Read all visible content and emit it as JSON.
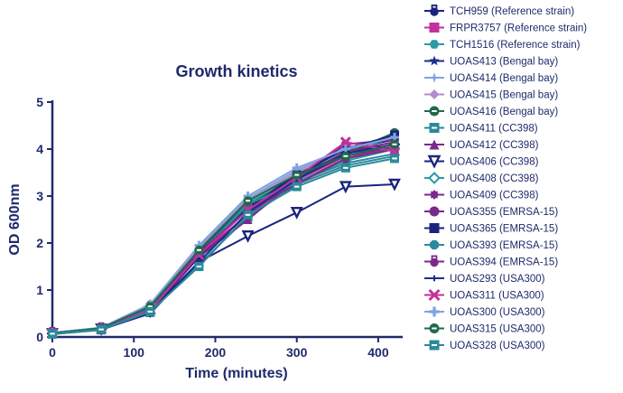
{
  "chart_data": {
    "type": "line",
    "title": "Growth kinetics",
    "xlabel": "Time (minutes)",
    "ylabel": "OD 600nm",
    "xlim": [
      0,
      430
    ],
    "ylim": [
      0,
      5
    ],
    "x_ticks": [
      "0",
      "100",
      "200",
      "300",
      "400"
    ],
    "y_ticks": [
      "0",
      "1",
      "2",
      "3",
      "4",
      "5"
    ],
    "x_tick_values": [
      0,
      100,
      200,
      300,
      400
    ],
    "y_tick_values": [
      0,
      1,
      2,
      3,
      4,
      5
    ],
    "grid": false,
    "legend_position": "right",
    "x": [
      0,
      60,
      120,
      180,
      240,
      300,
      360,
      420
    ],
    "series": [
      {
        "name": "TCH959 (Reference strain)",
        "color": "#1a237e",
        "marker": "lock",
        "values": [
          0.08,
          0.17,
          0.6,
          1.8,
          2.8,
          3.45,
          4.0,
          4.2
        ]
      },
      {
        "name": "FRPR3757 (Reference strain)",
        "color": "#c2329a",
        "marker": "square",
        "values": [
          0.09,
          0.16,
          0.55,
          1.75,
          2.6,
          3.3,
          3.8,
          4.05
        ]
      },
      {
        "name": "TCH1516 (Reference strain)",
        "color": "#2d9aa5",
        "marker": "hexagon",
        "values": [
          0.07,
          0.18,
          0.62,
          1.85,
          2.85,
          3.4,
          3.95,
          4.25
        ]
      },
      {
        "name": "UOAS413 (Bengal bay)",
        "color": "#1b2d8f",
        "marker": "star",
        "values": [
          0.08,
          0.18,
          0.58,
          1.82,
          2.9,
          3.45,
          3.9,
          4.15
        ]
      },
      {
        "name": "UOAS414 (Bengal bay)",
        "color": "#7ea4e0",
        "marker": "star4",
        "values": [
          0.09,
          0.19,
          0.64,
          1.9,
          2.95,
          3.55,
          4.0,
          4.3
        ]
      },
      {
        "name": "UOAS415 (Bengal bay)",
        "color": "#b38ccf",
        "marker": "diamond",
        "values": [
          0.08,
          0.2,
          0.66,
          1.88,
          2.92,
          3.5,
          4.05,
          4.1
        ]
      },
      {
        "name": "UOAS416 (Bengal bay)",
        "color": "#1e6b4a",
        "marker": "circle-bar",
        "values": [
          0.07,
          0.17,
          0.6,
          1.8,
          2.8,
          3.4,
          3.9,
          4.35
        ]
      },
      {
        "name": "UOAS411 (CC398)",
        "color": "#2b8a9a",
        "marker": "square-bar",
        "values": [
          0.06,
          0.15,
          0.52,
          1.55,
          2.55,
          3.25,
          3.65,
          3.85
        ]
      },
      {
        "name": "UOAS412 (CC398)",
        "color": "#7a2a8a",
        "marker": "triangle",
        "values": [
          0.08,
          0.16,
          0.55,
          1.7,
          2.5,
          3.35,
          3.95,
          4.15
        ]
      },
      {
        "name": "UOAS406 (CC398)",
        "color": "#1a237e",
        "marker": "triangle-down",
        "values": [
          0.07,
          0.17,
          0.55,
          1.6,
          2.15,
          2.65,
          3.2,
          3.25
        ]
      },
      {
        "name": "UOAS408 (CC398)",
        "color": "#2d9aa5",
        "marker": "diamond-open",
        "values": [
          0.08,
          0.18,
          0.6,
          1.75,
          2.75,
          3.3,
          3.75,
          4.0
        ]
      },
      {
        "name": "UOAS409 (CC398)",
        "color": "#7a2a8a",
        "marker": "gear",
        "values": [
          0.09,
          0.19,
          0.62,
          1.78,
          2.7,
          3.35,
          3.85,
          4.05
        ]
      },
      {
        "name": "UOAS355 (EMRSA-15)",
        "color": "#7a2a8a",
        "marker": "circle",
        "values": [
          0.08,
          0.18,
          0.58,
          1.7,
          2.6,
          3.4,
          4.1,
          4.2
        ]
      },
      {
        "name": "UOAS365 (EMRSA-15)",
        "color": "#1a237e",
        "marker": "square",
        "values": [
          0.07,
          0.17,
          0.56,
          1.72,
          2.75,
          3.45,
          4.0,
          4.3
        ]
      },
      {
        "name": "UOAS393 (EMRSA-15)",
        "color": "#2b8a9a",
        "marker": "octagon",
        "values": [
          0.08,
          0.18,
          0.6,
          1.78,
          2.82,
          3.3,
          3.7,
          3.9
        ]
      },
      {
        "name": "UOAS394 (EMRSA-15)",
        "color": "#7a2a8a",
        "marker": "lock",
        "values": [
          0.09,
          0.19,
          0.64,
          1.8,
          2.7,
          3.25,
          3.8,
          4.0
        ]
      },
      {
        "name": "UOAS293 (USA300)",
        "color": "#1b2d8f",
        "marker": "plus-thin",
        "values": [
          0.07,
          0.16,
          0.5,
          1.6,
          2.65,
          3.35,
          3.9,
          4.1
        ]
      },
      {
        "name": "UOAS311 (USA300)",
        "color": "#c2329a",
        "marker": "cross",
        "values": [
          0.08,
          0.17,
          0.57,
          1.75,
          2.7,
          3.4,
          4.15,
          3.95
        ]
      },
      {
        "name": "UOAS300 (USA300)",
        "color": "#7ea4e0",
        "marker": "plus",
        "values": [
          0.09,
          0.2,
          0.7,
          1.95,
          3.0,
          3.6,
          4.0,
          4.25
        ]
      },
      {
        "name": "UOAS315 (USA300)",
        "color": "#1e6b4a",
        "marker": "circle-bar",
        "values": [
          0.08,
          0.19,
          0.65,
          1.85,
          2.9,
          3.45,
          3.85,
          4.1
        ]
      },
      {
        "name": "UOAS328 (USA300)",
        "color": "#2b8a9a",
        "marker": "square-bar",
        "values": [
          0.07,
          0.16,
          0.54,
          1.5,
          2.6,
          3.2,
          3.6,
          3.8
        ]
      }
    ]
  }
}
